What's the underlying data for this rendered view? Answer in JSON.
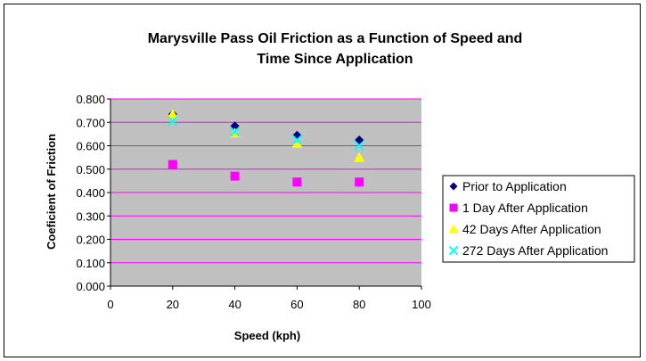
{
  "chart_data": {
    "type": "scatter",
    "title_lines": [
      "Marysville Pass Oil Friction as a Function of Speed and",
      "Time Since Application"
    ],
    "xlabel": "Speed (kph)",
    "ylabel": "Coeficient of Friction",
    "xlim": [
      0,
      100
    ],
    "ylim": [
      0,
      0.8
    ],
    "x_ticks": [
      "0",
      "20",
      "40",
      "60",
      "80",
      "100"
    ],
    "y_ticks": [
      "0.000",
      "0.100",
      "0.200",
      "0.300",
      "0.400",
      "0.500",
      "0.600",
      "0.700",
      "0.800"
    ],
    "grid": true,
    "plot_background": "#c0c0c0",
    "gridline_color": "#ff00ff",
    "legend_position": "right",
    "series": [
      {
        "name": "Prior to Application",
        "marker": "diamond",
        "color": "#000080",
        "x": [
          20,
          40,
          60,
          80
        ],
        "y": [
          0.735,
          0.685,
          0.645,
          0.625
        ]
      },
      {
        "name": "1 Day After Application",
        "marker": "square",
        "color": "#ff00ff",
        "x": [
          20,
          40,
          60,
          80
        ],
        "y": [
          0.52,
          0.47,
          0.445,
          0.445
        ]
      },
      {
        "name": "42 Days After Application",
        "marker": "triangle",
        "color": "#ffff00",
        "x": [
          20,
          40,
          60,
          80
        ],
        "y": [
          0.735,
          0.655,
          0.61,
          0.55
        ]
      },
      {
        "name": "272 Days After Application",
        "marker": "x",
        "color": "#00ffff",
        "x": [
          20,
          40,
          60,
          80
        ],
        "y": [
          0.705,
          0.66,
          0.625,
          0.6
        ]
      }
    ]
  }
}
